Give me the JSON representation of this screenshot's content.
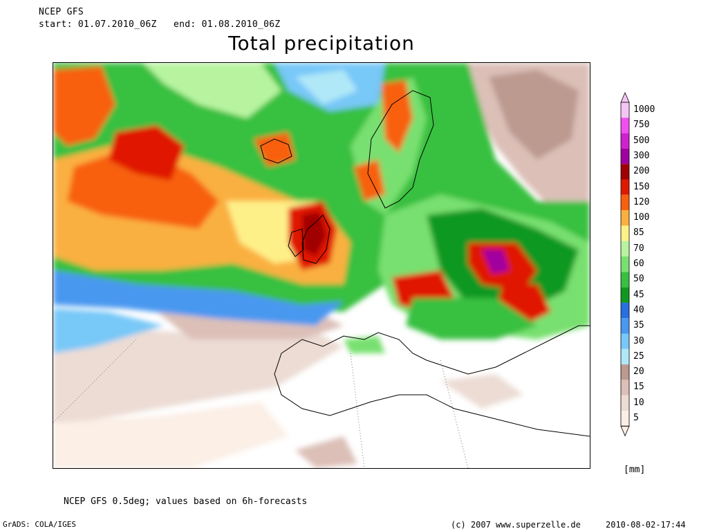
{
  "header": {
    "model": "NCEP GFS",
    "period": "start: 01.07.2010_06Z   end: 01.08.2010_06Z",
    "title": "Total precipitation"
  },
  "legend": {
    "unit": "[mm]",
    "levels": [
      {
        "label": "1000",
        "color": "#f4c6f4"
      },
      {
        "label": "750",
        "color": "#f050f0"
      },
      {
        "label": "500",
        "color": "#d020d0"
      },
      {
        "label": "300",
        "color": "#a000a0"
      },
      {
        "label": "200",
        "color": "#a00000"
      },
      {
        "label": "150",
        "color": "#e01800"
      },
      {
        "label": "120",
        "color": "#f86010"
      },
      {
        "label": "100",
        "color": "#fab040"
      },
      {
        "label": "85",
        "color": "#fef088"
      },
      {
        "label": "70",
        "color": "#b8f4a0"
      },
      {
        "label": "60",
        "color": "#78e070"
      },
      {
        "label": "50",
        "color": "#38c040"
      },
      {
        "label": "45",
        "color": "#109820"
      },
      {
        "label": "40",
        "color": "#2870e0"
      },
      {
        "label": "35",
        "color": "#4898f0"
      },
      {
        "label": "30",
        "color": "#78c8f8"
      },
      {
        "label": "25",
        "color": "#b0e8f8"
      },
      {
        "label": "20",
        "color": "#bc9a90"
      },
      {
        "label": "15",
        "color": "#dcc0b8"
      },
      {
        "label": "10",
        "color": "#ecdcd4"
      },
      {
        "label": "5",
        "color": "#fbefe6"
      }
    ]
  },
  "footer": {
    "note": "NCEP GFS 0.5deg; values based on 6h-forecasts",
    "software": "GrADS: COLA/IGES",
    "copyright": "(c) 2007 www.superzelle.de",
    "timestamp": "2010-08-02-17:44"
  },
  "colors": {
    "map_background": "#ffffff",
    "coastline": "#000000"
  }
}
